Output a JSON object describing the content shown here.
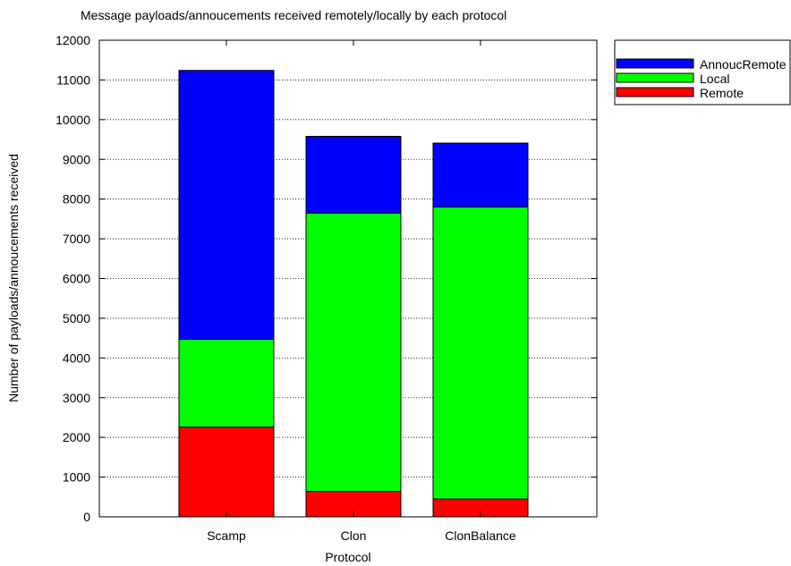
{
  "chart_data": {
    "type": "bar",
    "stacked": true,
    "title": "Message payloads/annoucements received remotely/locally by each protocol",
    "xlabel": "Protocol",
    "ylabel": "Number of payloads/annoucements received",
    "categories": [
      "Scamp",
      "Clon",
      "ClonBalance"
    ],
    "series": [
      {
        "name": "Remote",
        "color": "#ff0000",
        "values": [
          2260,
          640,
          450
        ]
      },
      {
        "name": "Local",
        "color": "#00ff00",
        "values": [
          2210,
          7010,
          7350
        ]
      },
      {
        "name": "AnnoucRemote",
        "color": "#0000ff",
        "values": [
          6770,
          1930,
          1610
        ]
      }
    ],
    "legend_order": [
      "AnnoucRemote",
      "Local",
      "Remote"
    ],
    "legend_position": "top-right",
    "ylim": [
      0,
      12000
    ],
    "yticks": [
      0,
      1000,
      2000,
      3000,
      4000,
      5000,
      6000,
      7000,
      8000,
      9000,
      10000,
      11000,
      12000
    ],
    "grid": "horizontal dotted"
  }
}
